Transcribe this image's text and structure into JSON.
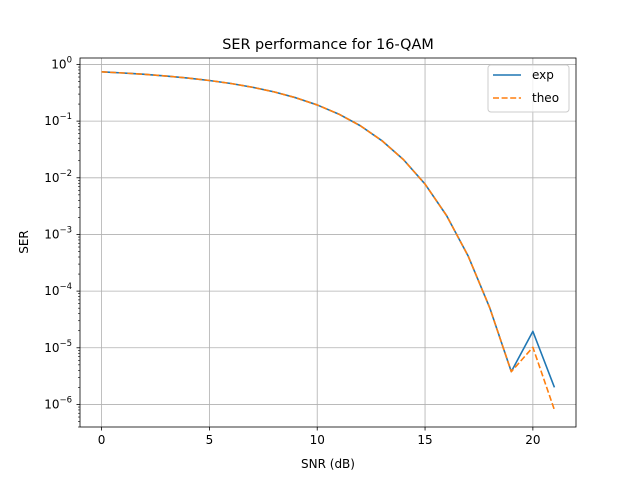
{
  "chart_data": {
    "type": "line",
    "title": "SER performance for 16-QAM",
    "xlabel": "SNR (dB)",
    "ylabel": "SER",
    "xlim": [
      -1,
      22
    ],
    "ylim": [
      4e-07,
      1.3
    ],
    "yscale": "log",
    "grid": true,
    "legend_position": "top-right",
    "x_ticks": [
      0,
      5,
      10,
      15,
      20
    ],
    "y_ticks": [
      1e-06,
      1e-05,
      0.0001,
      0.001,
      0.01,
      0.1,
      1
    ],
    "x": [
      0,
      1,
      2,
      3,
      4,
      5,
      6,
      7,
      8,
      9,
      10,
      11,
      12,
      13,
      14,
      15,
      16,
      17,
      18,
      19,
      20,
      21
    ],
    "series": [
      {
        "name": "exp",
        "color": "#1f77b4",
        "dash": "solid",
        "values": [
          0.741,
          0.707,
          0.669,
          0.625,
          0.576,
          0.521,
          0.461,
          0.396,
          0.328,
          0.259,
          0.193,
          0.133,
          0.0829,
          0.0452,
          0.0209,
          0.00775,
          0.00215,
          0.000416,
          5.08e-05,
          3.79e-06,
          1.95e-05,
          2e-06
        ]
      },
      {
        "name": "theo",
        "color": "#ff7f0e",
        "dash": "dashed",
        "values": [
          0.741,
          0.707,
          0.669,
          0.625,
          0.576,
          0.521,
          0.461,
          0.396,
          0.328,
          0.259,
          0.193,
          0.133,
          0.0829,
          0.0452,
          0.0209,
          0.00775,
          0.00215,
          0.000416,
          5.08e-05,
          3.79e-06,
          1.02e-05,
          8e-07
        ]
      }
    ]
  }
}
